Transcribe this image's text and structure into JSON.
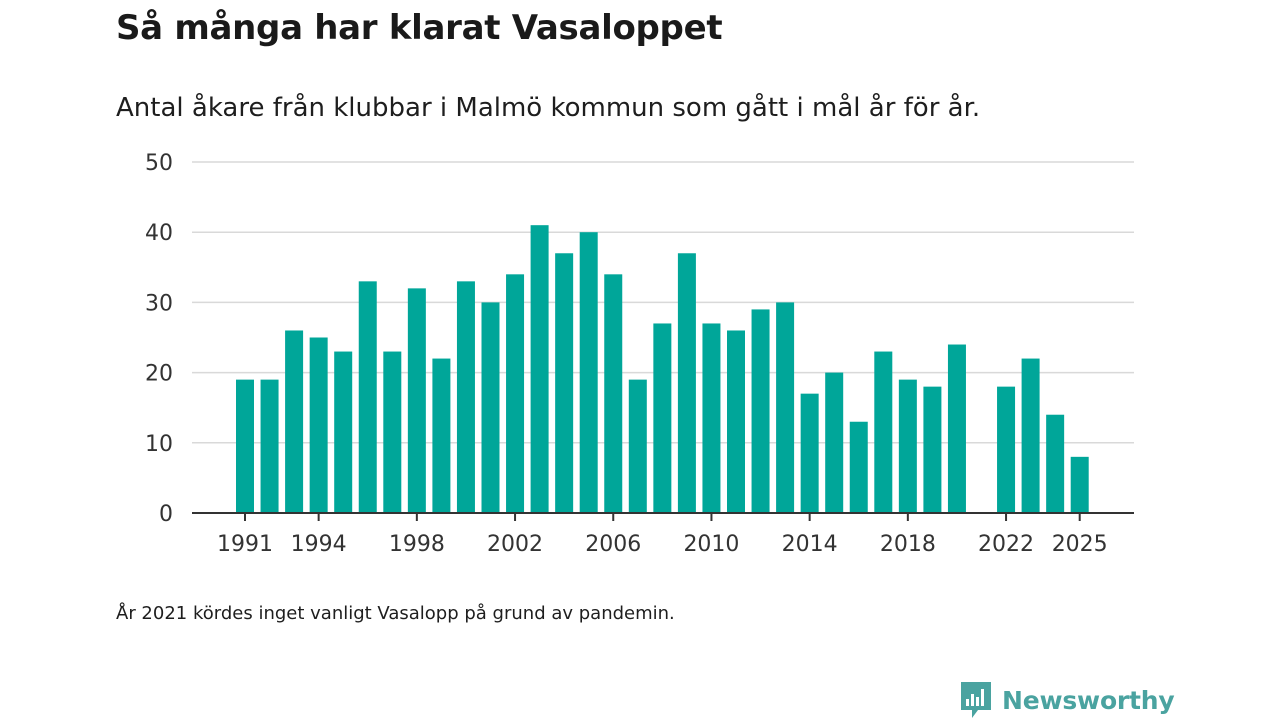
{
  "header": {
    "title": "Så många har klarat Vasaloppet",
    "subtitle": "Antal åkare från klubbar i Malmö kommun som gått i mål år för år."
  },
  "footer": {
    "note": "År 2021 kördes inget vanligt Vasalopp på grund av pandemin.",
    "brand": "Newsworthy"
  },
  "colors": {
    "bar": "#00a699",
    "grid": "#d9d9d9",
    "axis": "#333333",
    "brand": "#4aa3a0"
  },
  "chart_data": {
    "type": "bar",
    "title": "Så många har klarat Vasaloppet",
    "subtitle": "Antal åkare från klubbar i Malmö kommun som gått i mål år för år.",
    "xlabel": "",
    "ylabel": "",
    "ylim": [
      0,
      50
    ],
    "yticks": [
      0,
      10,
      20,
      30,
      40,
      50
    ],
    "xtick_labels": [
      "1991",
      "1994",
      "1998",
      "2002",
      "2006",
      "2010",
      "2014",
      "2018",
      "2022",
      "2025"
    ],
    "grid": true,
    "categories": [
      1991,
      1992,
      1993,
      1994,
      1995,
      1996,
      1997,
      1998,
      1999,
      2000,
      2001,
      2002,
      2003,
      2004,
      2005,
      2006,
      2007,
      2008,
      2009,
      2010,
      2011,
      2012,
      2013,
      2014,
      2015,
      2016,
      2017,
      2018,
      2019,
      2020,
      2021,
      2022,
      2023,
      2024,
      2025
    ],
    "values": [
      19,
      19,
      26,
      25,
      23,
      33,
      23,
      32,
      22,
      33,
      30,
      34,
      41,
      37,
      40,
      34,
      19,
      27,
      37,
      27,
      26,
      29,
      30,
      17,
      20,
      13,
      23,
      19,
      18,
      24,
      null,
      18,
      22,
      14,
      8
    ]
  }
}
